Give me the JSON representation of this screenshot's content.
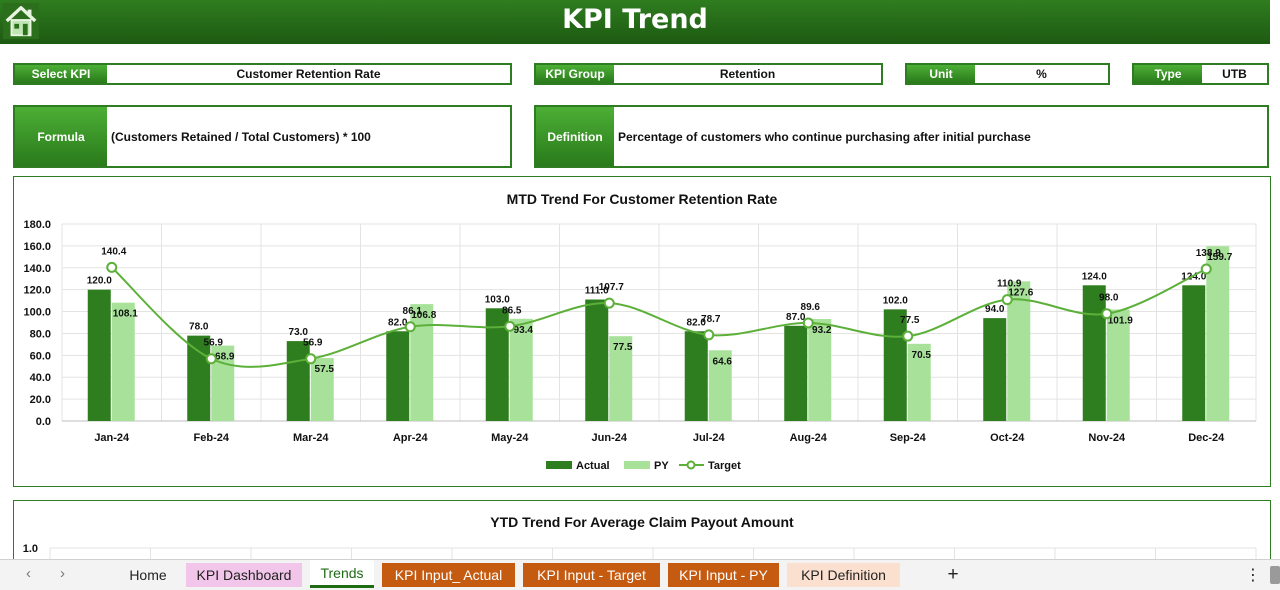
{
  "header": {
    "title": "KPI Trend"
  },
  "selectors": {
    "select_kpi": {
      "label": "Select KPI",
      "value": "Customer Retention Rate"
    },
    "kpi_group": {
      "label": "KPI Group",
      "value": "Retention"
    },
    "unit": {
      "label": "Unit",
      "value": "%"
    },
    "type": {
      "label": "Type",
      "value": "UTB"
    },
    "formula": {
      "label": "Formula",
      "value": "(Customers Retained / Total Customers) * 100"
    },
    "definition": {
      "label": "Definition",
      "value": "Percentage of customers who continue purchasing after initial purchase"
    }
  },
  "colors": {
    "actual": "#2e7d1e",
    "py": "#a8e29a",
    "target": "#5cb039",
    "accent": "#2e7d22"
  },
  "chart_data": [
    {
      "type": "bar",
      "title": "MTD Trend For Customer Retention Rate",
      "categories": [
        "Jan-24",
        "Feb-24",
        "Mar-24",
        "Apr-24",
        "May-24",
        "Jun-24",
        "Jul-24",
        "Aug-24",
        "Sep-24",
        "Oct-24",
        "Nov-24",
        "Dec-24"
      ],
      "series": [
        {
          "name": "Actual",
          "kind": "bar",
          "values": [
            120.0,
            78.0,
            73.0,
            82.0,
            103.0,
            111.0,
            82.0,
            87.0,
            102.0,
            94.0,
            124.0,
            124.0
          ]
        },
        {
          "name": "PY",
          "kind": "bar",
          "values": [
            108.1,
            68.9,
            57.5,
            106.8,
            93.4,
            77.5,
            64.6,
            93.2,
            70.5,
            127.6,
            101.9,
            159.7
          ]
        },
        {
          "name": "Target",
          "kind": "line",
          "values": [
            140.4,
            56.9,
            56.9,
            86.1,
            86.5,
            107.7,
            78.7,
            89.6,
            77.5,
            110.9,
            98.0,
            138.9
          ]
        }
      ],
      "ylim": [
        0,
        180
      ],
      "yticks": [
        "0.0",
        "20.0",
        "40.0",
        "60.0",
        "80.0",
        "100.0",
        "120.0",
        "140.0",
        "160.0",
        "180.0"
      ],
      "grid": true,
      "legend": "bottom"
    },
    {
      "type": "line",
      "title": "YTD Trend For Average Claim Payout Amount",
      "yticks": [
        "1.0"
      ],
      "grid": true
    }
  ],
  "sheet_tabs": {
    "items": [
      {
        "label": "Home"
      },
      {
        "label": "KPI Dashboard"
      },
      {
        "label": "Trends"
      },
      {
        "label": "KPI Input_ Actual"
      },
      {
        "label": "KPI Input - Target"
      },
      {
        "label": "KPI Input - PY"
      },
      {
        "label": "KPI Definition"
      }
    ],
    "add_symbol": "+",
    "prev_symbol": "‹",
    "next_symbol": "›",
    "more_symbol": "⋮"
  }
}
